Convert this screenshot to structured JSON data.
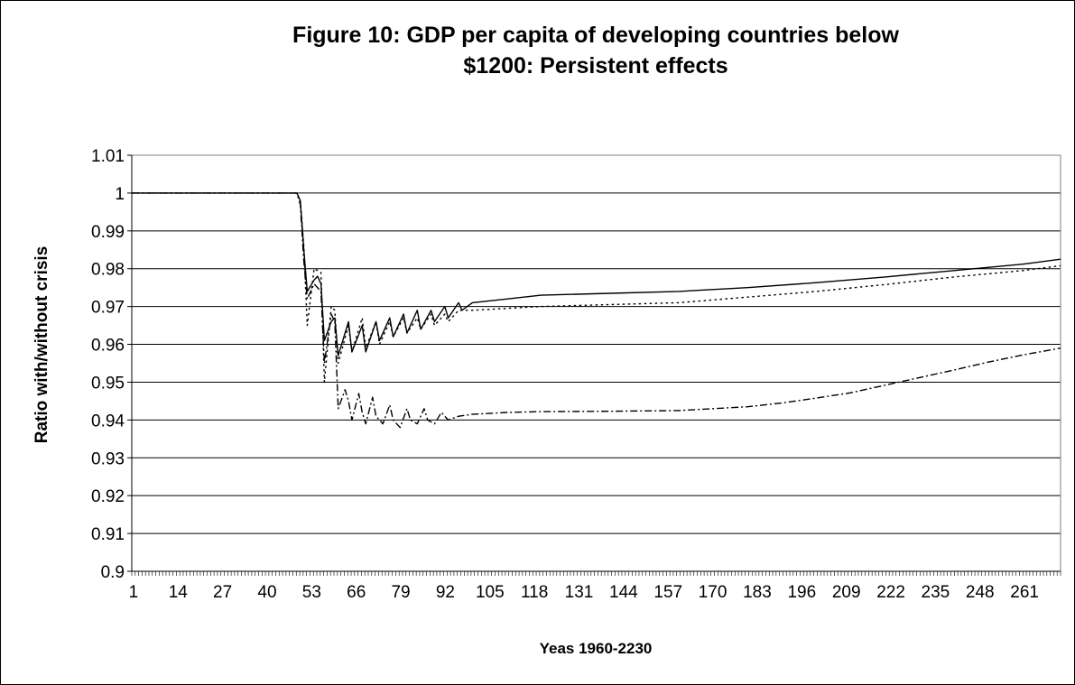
{
  "chart_data": {
    "type": "line",
    "title_lines": [
      "Figure 10: GDP per capita of developing countries below",
      "$1200: Persistent effects"
    ],
    "xlabel": "Yeas 1960-2230",
    "ylabel": "Ratio with/without crisis",
    "xlim": [
      1,
      271
    ],
    "ylim": [
      0.9,
      1.01
    ],
    "y_ticks": [
      0.9,
      0.91,
      0.92,
      0.93,
      0.94,
      0.95,
      0.96,
      0.97,
      0.98,
      0.99,
      1,
      1.01
    ],
    "y_tick_labels": [
      "0.9",
      "0.91",
      "0.92",
      "0.93",
      "0.94",
      "0.95",
      "0.96",
      "0.97",
      "0.98",
      "0.99",
      "1",
      "1.01"
    ],
    "x_tick_labels": [
      "1",
      "14",
      "27",
      "40",
      "53",
      "66",
      "79",
      "92",
      "105",
      "118",
      "131",
      "144",
      "157",
      "170",
      "183",
      "196",
      "209",
      "222",
      "235",
      "248",
      "261"
    ],
    "grid": "horizontal",
    "legend": "none",
    "series": [
      {
        "style": "solid",
        "points": [
          [
            1,
            1
          ],
          [
            49,
            1
          ],
          [
            50,
            0.998
          ],
          [
            51,
            0.985
          ],
          [
            52,
            0.974
          ],
          [
            54,
            0.977
          ],
          [
            55,
            0.978
          ],
          [
            56,
            0.976
          ],
          [
            57,
            0.961
          ],
          [
            59,
            0.966
          ],
          [
            60,
            0.967
          ],
          [
            61,
            0.957
          ],
          [
            64,
            0.966
          ],
          [
            65,
            0.958
          ],
          [
            68,
            0.965
          ],
          [
            69,
            0.958
          ],
          [
            72,
            0.966
          ],
          [
            73,
            0.961
          ],
          [
            76,
            0.967
          ],
          [
            77,
            0.962
          ],
          [
            80,
            0.968
          ],
          [
            81,
            0.963
          ],
          [
            84,
            0.969
          ],
          [
            85,
            0.964
          ],
          [
            88,
            0.969
          ],
          [
            89,
            0.966
          ],
          [
            92,
            0.97
          ],
          [
            93,
            0.967
          ],
          [
            96,
            0.971
          ],
          [
            97,
            0.969
          ],
          [
            100,
            0.971
          ],
          [
            110,
            0.972
          ],
          [
            120,
            0.973
          ],
          [
            140,
            0.9735
          ],
          [
            160,
            0.974
          ],
          [
            180,
            0.975
          ],
          [
            200,
            0.9763
          ],
          [
            220,
            0.9778
          ],
          [
            240,
            0.9795
          ],
          [
            260,
            0.9812
          ],
          [
            271,
            0.9825
          ]
        ]
      },
      {
        "style": "dotted",
        "points": [
          [
            1,
            1
          ],
          [
            49,
            1
          ],
          [
            50,
            0.998
          ],
          [
            51,
            0.986
          ],
          [
            52,
            0.965
          ],
          [
            54,
            0.98
          ],
          [
            56,
            0.979
          ],
          [
            57,
            0.95
          ],
          [
            59,
            0.97
          ],
          [
            60,
            0.969
          ],
          [
            61,
            0.955
          ],
          [
            64,
            0.965
          ],
          [
            65,
            0.958
          ],
          [
            68,
            0.967
          ],
          [
            69,
            0.959
          ],
          [
            72,
            0.966
          ],
          [
            73,
            0.96
          ],
          [
            76,
            0.966
          ],
          [
            77,
            0.962
          ],
          [
            80,
            0.967
          ],
          [
            81,
            0.963
          ],
          [
            84,
            0.967
          ],
          [
            85,
            0.964
          ],
          [
            88,
            0.968
          ],
          [
            89,
            0.965
          ],
          [
            92,
            0.968
          ],
          [
            93,
            0.966
          ],
          [
            96,
            0.969
          ],
          [
            100,
            0.969
          ],
          [
            110,
            0.9695
          ],
          [
            120,
            0.97
          ],
          [
            140,
            0.9705
          ],
          [
            160,
            0.971
          ],
          [
            180,
            0.9725
          ],
          [
            200,
            0.974
          ],
          [
            220,
            0.9758
          ],
          [
            240,
            0.9778
          ],
          [
            260,
            0.9795
          ],
          [
            271,
            0.9808
          ]
        ]
      },
      {
        "style": "dash-dot",
        "points": [
          [
            1,
            1
          ],
          [
            49,
            1
          ],
          [
            50,
            0.997
          ],
          [
            51,
            0.982
          ],
          [
            52,
            0.972
          ],
          [
            54,
            0.976
          ],
          [
            56,
            0.974
          ],
          [
            57,
            0.955
          ],
          [
            59,
            0.968
          ],
          [
            60,
            0.966
          ],
          [
            61,
            0.943
          ],
          [
            63,
            0.948
          ],
          [
            64,
            0.945
          ],
          [
            65,
            0.94
          ],
          [
            67,
            0.947
          ],
          [
            68,
            0.942
          ],
          [
            69,
            0.939
          ],
          [
            71,
            0.946
          ],
          [
            72,
            0.941
          ],
          [
            74,
            0.939
          ],
          [
            76,
            0.944
          ],
          [
            77,
            0.94
          ],
          [
            79,
            0.938
          ],
          [
            81,
            0.943
          ],
          [
            82,
            0.94
          ],
          [
            84,
            0.939
          ],
          [
            86,
            0.943
          ],
          [
            87,
            0.94
          ],
          [
            89,
            0.939
          ],
          [
            91,
            0.942
          ],
          [
            93,
            0.94
          ],
          [
            96,
            0.941
          ],
          [
            100,
            0.9415
          ],
          [
            110,
            0.942
          ],
          [
            120,
            0.9422
          ],
          [
            140,
            0.9423
          ],
          [
            160,
            0.9425
          ],
          [
            180,
            0.9435
          ],
          [
            190,
            0.9445
          ],
          [
            200,
            0.9458
          ],
          [
            210,
            0.9472
          ],
          [
            220,
            0.9492
          ],
          [
            230,
            0.9512
          ],
          [
            240,
            0.9532
          ],
          [
            250,
            0.9553
          ],
          [
            260,
            0.9572
          ],
          [
            271,
            0.959
          ]
        ]
      }
    ]
  }
}
